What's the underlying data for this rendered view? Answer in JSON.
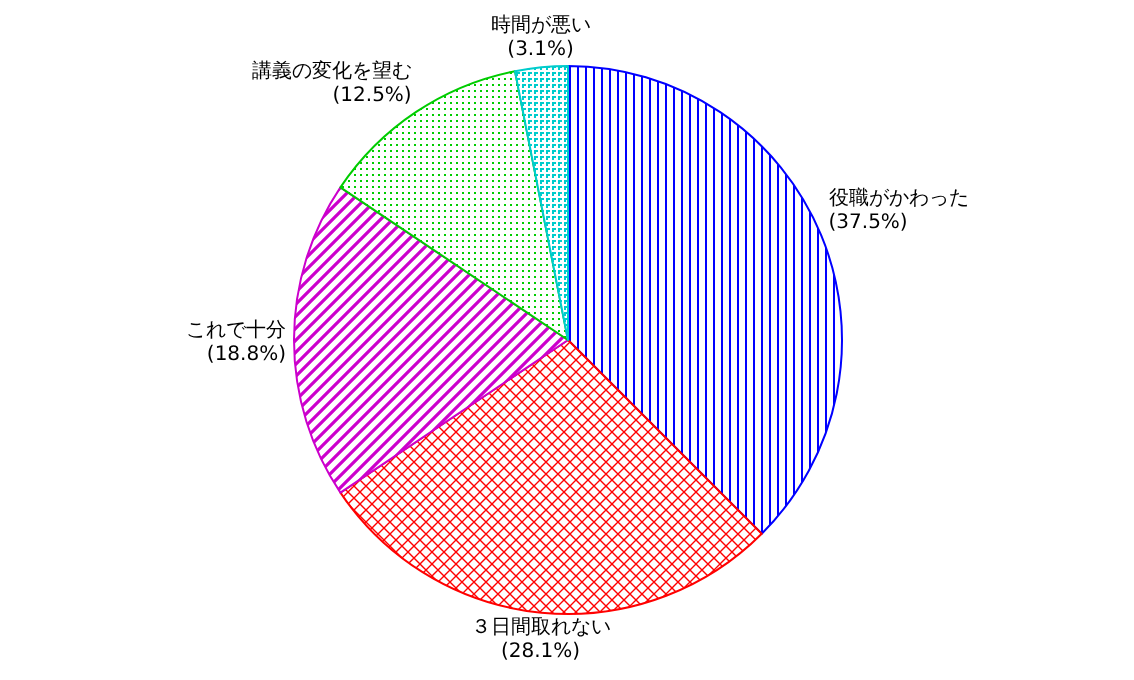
{
  "chart_data": {
    "type": "pie",
    "categories": [
      "役職がかわった",
      "３日間取れない",
      "これで十分",
      "講義の変化を望む",
      "時間が悪い"
    ],
    "values": [
      37.5,
      28.1,
      18.8,
      12.5,
      3.1
    ],
    "value_labels": [
      "(37.5%)",
      "(28.1%)",
      "(18.8%)",
      "(12.5%)",
      "(3.1%)"
    ],
    "colors": [
      "#0000ff",
      "#ff0000",
      "#cc00cc",
      "#00cc00",
      "#00cccc"
    ]
  }
}
